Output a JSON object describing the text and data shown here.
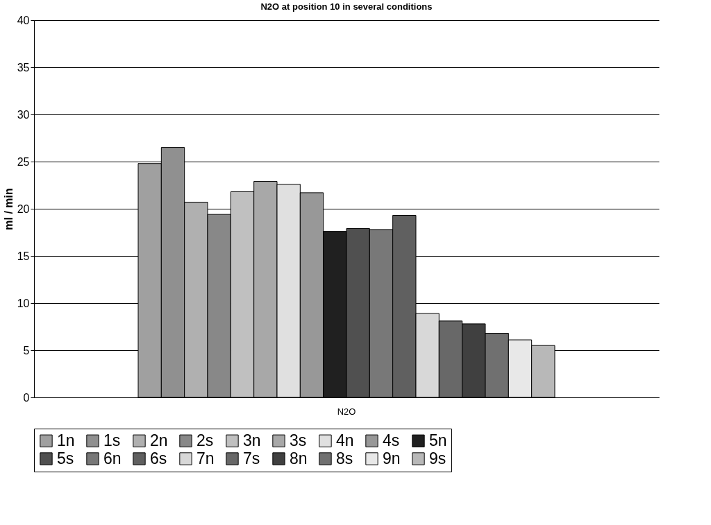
{
  "chart_data": {
    "type": "bar",
    "title": "N2O at position 10 in several conditions",
    "ylabel": "ml / min",
    "categories": [
      "N2O"
    ],
    "series": [
      {
        "name": "1n",
        "color": "#a0a0a0",
        "values": [
          24.8
        ]
      },
      {
        "name": "1s",
        "color": "#909090",
        "values": [
          26.5
        ]
      },
      {
        "name": "2n",
        "color": "#b0b0b0",
        "values": [
          20.7
        ]
      },
      {
        "name": "2s",
        "color": "#888888",
        "values": [
          19.4
        ]
      },
      {
        "name": "3n",
        "color": "#c0c0c0",
        "values": [
          21.8
        ]
      },
      {
        "name": "3s",
        "color": "#a8a8a8",
        "values": [
          22.9
        ]
      },
      {
        "name": "4n",
        "color": "#e0e0e0",
        "values": [
          22.6
        ]
      },
      {
        "name": "4s",
        "color": "#989898",
        "values": [
          21.7
        ]
      },
      {
        "name": "5n",
        "color": "#202020",
        "values": [
          17.6
        ]
      },
      {
        "name": "5s",
        "color": "#505050",
        "values": [
          17.9
        ]
      },
      {
        "name": "6n",
        "color": "#787878",
        "values": [
          17.8
        ]
      },
      {
        "name": "6s",
        "color": "#606060",
        "values": [
          19.3
        ]
      },
      {
        "name": "7n",
        "color": "#d8d8d8",
        "values": [
          8.9
        ]
      },
      {
        "name": "7s",
        "color": "#686868",
        "values": [
          8.1
        ]
      },
      {
        "name": "8n",
        "color": "#404040",
        "values": [
          7.8
        ]
      },
      {
        "name": "8s",
        "color": "#707070",
        "values": [
          6.8
        ]
      },
      {
        "name": "9n",
        "color": "#e8e8e8",
        "values": [
          6.1
        ]
      },
      {
        "name": "9s",
        "color": "#b8b8b8",
        "values": [
          5.5
        ]
      }
    ],
    "ylim": [
      0,
      40
    ],
    "yticks": [
      0,
      5,
      10,
      15,
      20,
      25,
      30,
      35,
      40
    ],
    "grid": "y",
    "legend": "bottom"
  }
}
